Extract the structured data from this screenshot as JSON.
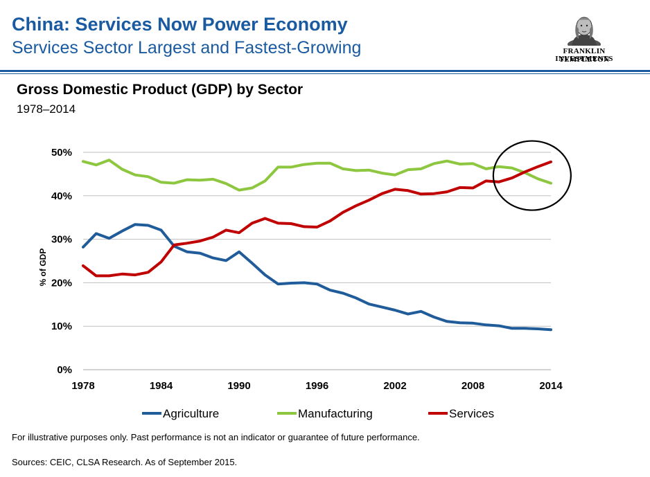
{
  "header": {
    "title": "China: Services Now Power Economy",
    "subtitle": "Services Sector Largest and Fastest-Growing",
    "logo_line1": "FRANKLIN TEMPLETON",
    "logo_line2": "INVESTMENTS",
    "logo_icon": "benjamin-franklin-portrait-icon"
  },
  "colors": {
    "brand_blue": "#1a5aa0",
    "agriculture": "#1f5c99",
    "manufacturing": "#8dc63f",
    "services": "#c00000",
    "highlight_circle": "#000000"
  },
  "chart_data": {
    "type": "line",
    "title": "Gross Domestic Product (GDP) by Sector",
    "subtitle": "1978–2014",
    "ylabel": "% of GDP",
    "xlabel": "",
    "ylim": [
      0,
      50
    ],
    "yticks": [
      "0%",
      "10%",
      "20%",
      "30%",
      "40%",
      "50%"
    ],
    "yticks_values": [
      0,
      10,
      20,
      30,
      40,
      50
    ],
    "xlim": [
      1978,
      2014
    ],
    "xticks": [
      "1978",
      "1984",
      "1990",
      "1996",
      "2002",
      "2008",
      "2014"
    ],
    "xticks_values": [
      1978,
      1984,
      1990,
      1996,
      2002,
      2008,
      2014
    ],
    "grid": true,
    "legend_position": "bottom",
    "annotation": "circle highlighting services overtaking manufacturing, 2010–2014",
    "annotation_center": [
      2012.5,
      44.5
    ],
    "x": [
      1978,
      1979,
      1980,
      1981,
      1982,
      1983,
      1984,
      1985,
      1986,
      1987,
      1988,
      1989,
      1990,
      1991,
      1992,
      1993,
      1994,
      1995,
      1996,
      1997,
      1998,
      1999,
      2000,
      2001,
      2002,
      2003,
      2004,
      2005,
      2006,
      2007,
      2008,
      2009,
      2010,
      2011,
      2012,
      2013,
      2014
    ],
    "series": [
      {
        "name": "Agriculture",
        "color": "#1f5c99",
        "values": [
          28.2,
          31.3,
          30.2,
          31.9,
          33.4,
          33.2,
          32.1,
          28.4,
          27.1,
          26.8,
          25.7,
          25.1,
          27.1,
          24.5,
          21.8,
          19.7,
          19.9,
          20.0,
          19.7,
          18.3,
          17.6,
          16.5,
          15.1,
          14.4,
          13.7,
          12.8,
          13.4,
          12.1,
          11.1,
          10.8,
          10.7,
          10.3,
          10.1,
          9.5,
          9.5,
          9.4,
          9.2
        ]
      },
      {
        "name": "Manufacturing",
        "color": "#8dc63f",
        "values": [
          47.9,
          47.1,
          48.2,
          46.1,
          44.8,
          44.4,
          43.1,
          42.9,
          43.7,
          43.6,
          43.8,
          42.8,
          41.3,
          41.8,
          43.4,
          46.6,
          46.6,
          47.2,
          47.5,
          47.5,
          46.2,
          45.8,
          45.9,
          45.2,
          44.8,
          46.0,
          46.2,
          47.4,
          48.0,
          47.3,
          47.4,
          46.2,
          46.7,
          46.4,
          45.3,
          43.9,
          42.9
        ]
      },
      {
        "name": "Services",
        "color": "#c00000",
        "values": [
          23.9,
          21.6,
          21.6,
          22.0,
          21.8,
          22.4,
          24.8,
          28.7,
          29.1,
          29.6,
          30.5,
          32.1,
          31.5,
          33.7,
          34.8,
          33.7,
          33.6,
          32.9,
          32.8,
          34.2,
          36.2,
          37.7,
          39.0,
          40.5,
          41.5,
          41.2,
          40.4,
          40.5,
          40.9,
          41.9,
          41.8,
          43.4,
          43.2,
          44.1,
          45.5,
          46.7,
          47.8
        ]
      }
    ]
  },
  "footer": {
    "disclaimer": "For illustrative purposes only.  Past performance is not an indicator or guarantee of future performance.",
    "sources": "Sources: CEIC, CLSA Research. As of September 2015."
  }
}
